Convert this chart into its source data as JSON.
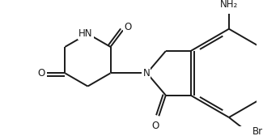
{
  "background_color": "#ffffff",
  "line_color": "#1a1a1a",
  "line_width": 1.4,
  "font_size": 8.5,
  "figsize": [
    3.46,
    1.68
  ],
  "dpi": 100,
  "labels": {
    "HN": "HN",
    "O_top": "O",
    "O_left": "O",
    "N_center": "N",
    "O_bottom": "O",
    "NH2": "NH₂",
    "Br": "Br"
  }
}
